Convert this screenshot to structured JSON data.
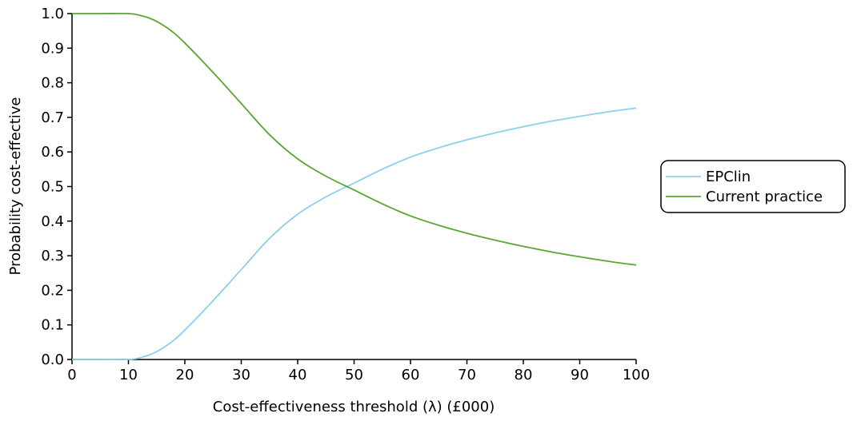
{
  "chart_data": {
    "type": "line",
    "xlabel": "Cost-effectiveness threshold (λ) (£000)",
    "ylabel": "Probability cost-effective",
    "xlim": [
      0,
      100
    ],
    "ylim": [
      0,
      1
    ],
    "xticks": [
      0,
      10,
      20,
      30,
      40,
      50,
      60,
      70,
      80,
      90,
      100
    ],
    "xtick_labels": [
      "0",
      "10",
      "20",
      "30",
      "40",
      "50",
      "60",
      "70",
      "80",
      "90",
      "100"
    ],
    "yticks": [
      0,
      0.1,
      0.2,
      0.3,
      0.4,
      0.5,
      0.6,
      0.7,
      0.8,
      0.9,
      1.0
    ],
    "ytick_labels": [
      "0.0",
      "0.1",
      "0.2",
      "0.3",
      "0.4",
      "0.5",
      "0.6",
      "0.7",
      "0.8",
      "0.9",
      "1.0"
    ],
    "grid": false,
    "legend_position": "right",
    "series": [
      {
        "name": "EPClin",
        "color": "#8ecfed",
        "x": [
          0,
          5,
          10,
          12,
          14,
          16,
          18,
          20,
          25,
          30,
          35,
          40,
          45,
          50,
          55,
          60,
          65,
          70,
          75,
          80,
          85,
          90,
          95,
          100
        ],
        "y": [
          0.0,
          0.0,
          0.0,
          0.005,
          0.015,
          0.032,
          0.055,
          0.085,
          0.17,
          0.26,
          0.35,
          0.42,
          0.47,
          0.51,
          0.55,
          0.585,
          0.612,
          0.635,
          0.655,
          0.673,
          0.689,
          0.703,
          0.716,
          0.727
        ]
      },
      {
        "name": "Current practice",
        "color": "#5aa62f",
        "x": [
          0,
          5,
          10,
          12,
          14,
          16,
          18,
          20,
          25,
          30,
          35,
          40,
          45,
          50,
          55,
          60,
          65,
          70,
          75,
          80,
          85,
          90,
          95,
          100
        ],
        "y": [
          1.0,
          1.0,
          1.0,
          0.995,
          0.985,
          0.968,
          0.945,
          0.915,
          0.83,
          0.74,
          0.65,
          0.58,
          0.53,
          0.49,
          0.45,
          0.415,
          0.388,
          0.365,
          0.345,
          0.327,
          0.311,
          0.297,
          0.284,
          0.273
        ]
      }
    ]
  }
}
